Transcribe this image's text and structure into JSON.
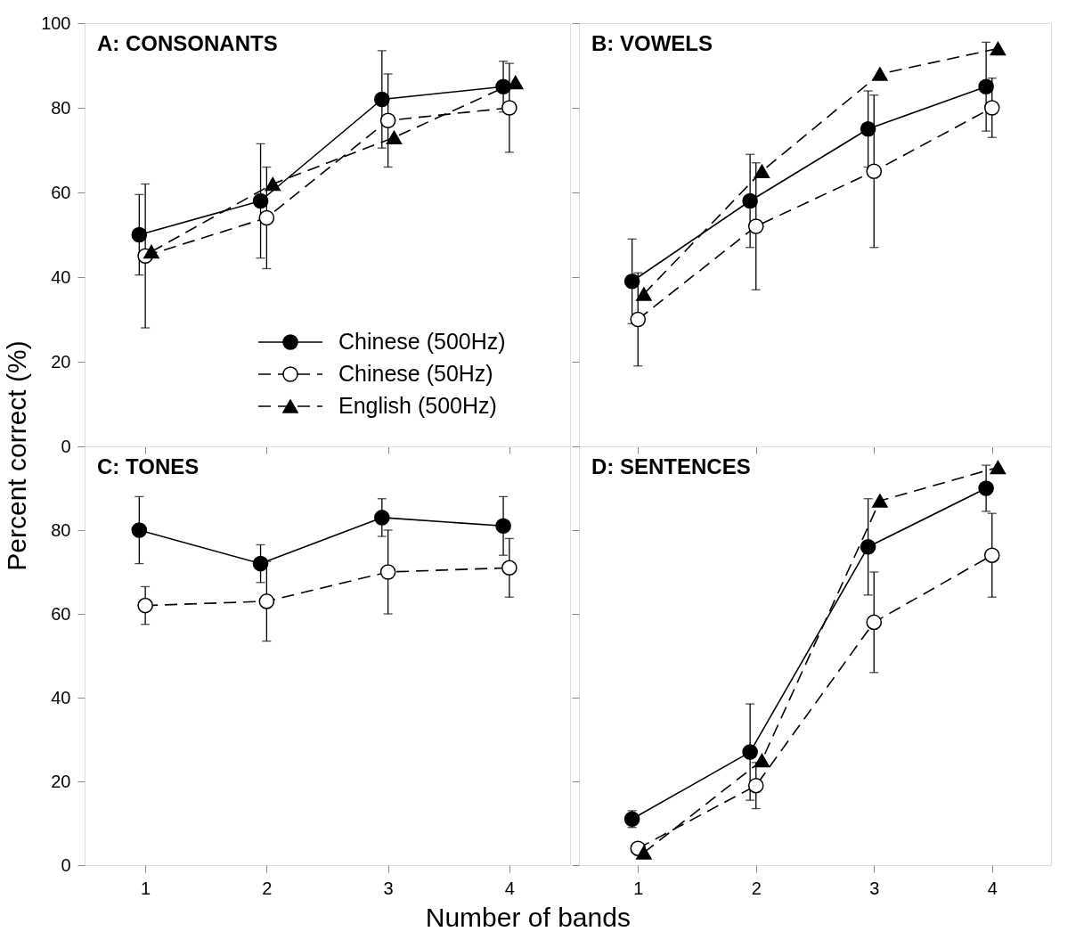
{
  "chart_data": [
    {
      "type": "line",
      "title": "A: CONSONANTS",
      "xlim": [
        0.5,
        4.5
      ],
      "xticks": [
        1,
        2,
        3,
        4
      ],
      "ylim": [
        0,
        100
      ],
      "yticks": [
        0,
        20,
        40,
        60,
        80,
        100
      ],
      "tick_labels": "y",
      "grid": false,
      "legend": "bottom right",
      "series": [
        {
          "name": "Chinese (500Hz)",
          "color": "#000000",
          "marker": "circle",
          "line_style": "solid",
          "x": [
            0.95,
            1.95,
            2.95,
            3.95
          ],
          "values": [
            50,
            58,
            82,
            85
          ],
          "errors": [
            9.5,
            13.5,
            11.5,
            6
          ]
        },
        {
          "name": "Chinese (50Hz)",
          "color": "#000000",
          "colors": [
            "#ffffff",
            "#ffffff",
            "#ffffff",
            "#ffffff"
          ],
          "marker": "circle",
          "line_style": "dashed",
          "x": [
            1,
            2,
            3,
            4
          ],
          "values": [
            45,
            54,
            77,
            80
          ],
          "errors": [
            17,
            12,
            11,
            10.5
          ]
        },
        {
          "name": "English (500Hz)",
          "color": "#000000",
          "marker": "triangle",
          "line_style": "dashed",
          "x": [
            1.05,
            2.05,
            3.05,
            4.05
          ],
          "values": [
            46,
            62,
            73,
            86
          ]
        }
      ]
    },
    {
      "type": "line",
      "title": "B: VOWELS",
      "xlim": [
        0.5,
        4.5
      ],
      "xticks": [
        1,
        2,
        3,
        4
      ],
      "ylim": [
        0,
        100
      ],
      "yticks": [
        0,
        20,
        40,
        60,
        80,
        100
      ],
      "tick_labels": false,
      "grid": false,
      "series": [
        {
          "color": "#000000",
          "marker": "circle",
          "line_style": "solid",
          "x": [
            0.95,
            1.95,
            2.95,
            3.95
          ],
          "values": [
            39,
            58,
            75,
            85
          ],
          "errors": [
            10,
            11,
            9,
            10.5
          ]
        },
        {
          "color": "#000000",
          "colors": [
            "#ffffff",
            "#ffffff",
            "#ffffff",
            "#ffffff"
          ],
          "marker": "circle",
          "line_style": "dashed",
          "x": [
            1,
            2,
            3,
            4
          ],
          "values": [
            30,
            52,
            65,
            80
          ],
          "errors": [
            11,
            15,
            18,
            7
          ]
        },
        {
          "color": "#000000",
          "marker": "triangle",
          "line_style": "dashed",
          "x": [
            1.05,
            2.05,
            3.05,
            4.05
          ],
          "values": [
            36,
            65,
            88,
            94
          ]
        }
      ]
    },
    {
      "type": "line",
      "title": "C: TONES",
      "xlabel": "Number of bands",
      "ylabel": "Percent correct (%)",
      "xlim": [
        0.5,
        4.5
      ],
      "xticks": [
        1,
        2,
        3,
        4
      ],
      "ylim": [
        0,
        100
      ],
      "yticks": [
        0,
        20,
        40,
        60,
        80,
        {
          "value": 100,
          "label": null
        }
      ],
      "grid": false,
      "series": [
        {
          "color": "#000000",
          "marker": "circle",
          "line_style": "solid",
          "x": [
            0.95,
            1.95,
            2.95,
            3.95
          ],
          "values": [
            80,
            72,
            83,
            81
          ],
          "errors": [
            8,
            4.5,
            4.5,
            7
          ]
        },
        {
          "color": "#000000",
          "colors": [
            "#ffffff",
            "#ffffff",
            "#ffffff",
            "#ffffff"
          ],
          "marker": "circle",
          "line_style": "dashed",
          "x": [
            1,
            2,
            3,
            4
          ],
          "values": [
            62,
            63,
            70,
            71
          ],
          "errors": [
            4.5,
            9.5,
            10,
            7
          ]
        }
      ]
    },
    {
      "type": "line",
      "title": "D: SENTENCES",
      "xlim": [
        0.5,
        4.5
      ],
      "xticks": [
        1,
        2,
        3,
        4
      ],
      "ylim": [
        0,
        100
      ],
      "yticks": [
        0,
        20,
        40,
        60,
        80,
        {
          "value": 100,
          "label": null
        }
      ],
      "tick_labels": "x",
      "grid": false,
      "series": [
        {
          "color": "#000000",
          "marker": "circle",
          "line_style": "solid",
          "x": [
            0.95,
            1.95,
            2.95,
            3.95
          ],
          "values": [
            11,
            27,
            76,
            90
          ],
          "errors": [
            2,
            11.5,
            11.5,
            5.5
          ]
        },
        {
          "color": "#000000",
          "colors": [
            "#ffffff",
            "#ffffff",
            "#ffffff",
            "#ffffff"
          ],
          "marker": "circle",
          "line_style": "dashed",
          "x": [
            1,
            2,
            3,
            4
          ],
          "values": [
            4,
            19,
            58,
            74
          ],
          "errors": [
            null,
            5.5,
            12,
            10
          ]
        },
        {
          "color": "#000000",
          "marker": "triangle",
          "line_style": "dashed",
          "x": [
            1.05,
            2.05,
            3.05,
            4.05
          ],
          "values": [
            3,
            25,
            87,
            95
          ]
        }
      ]
    }
  ]
}
